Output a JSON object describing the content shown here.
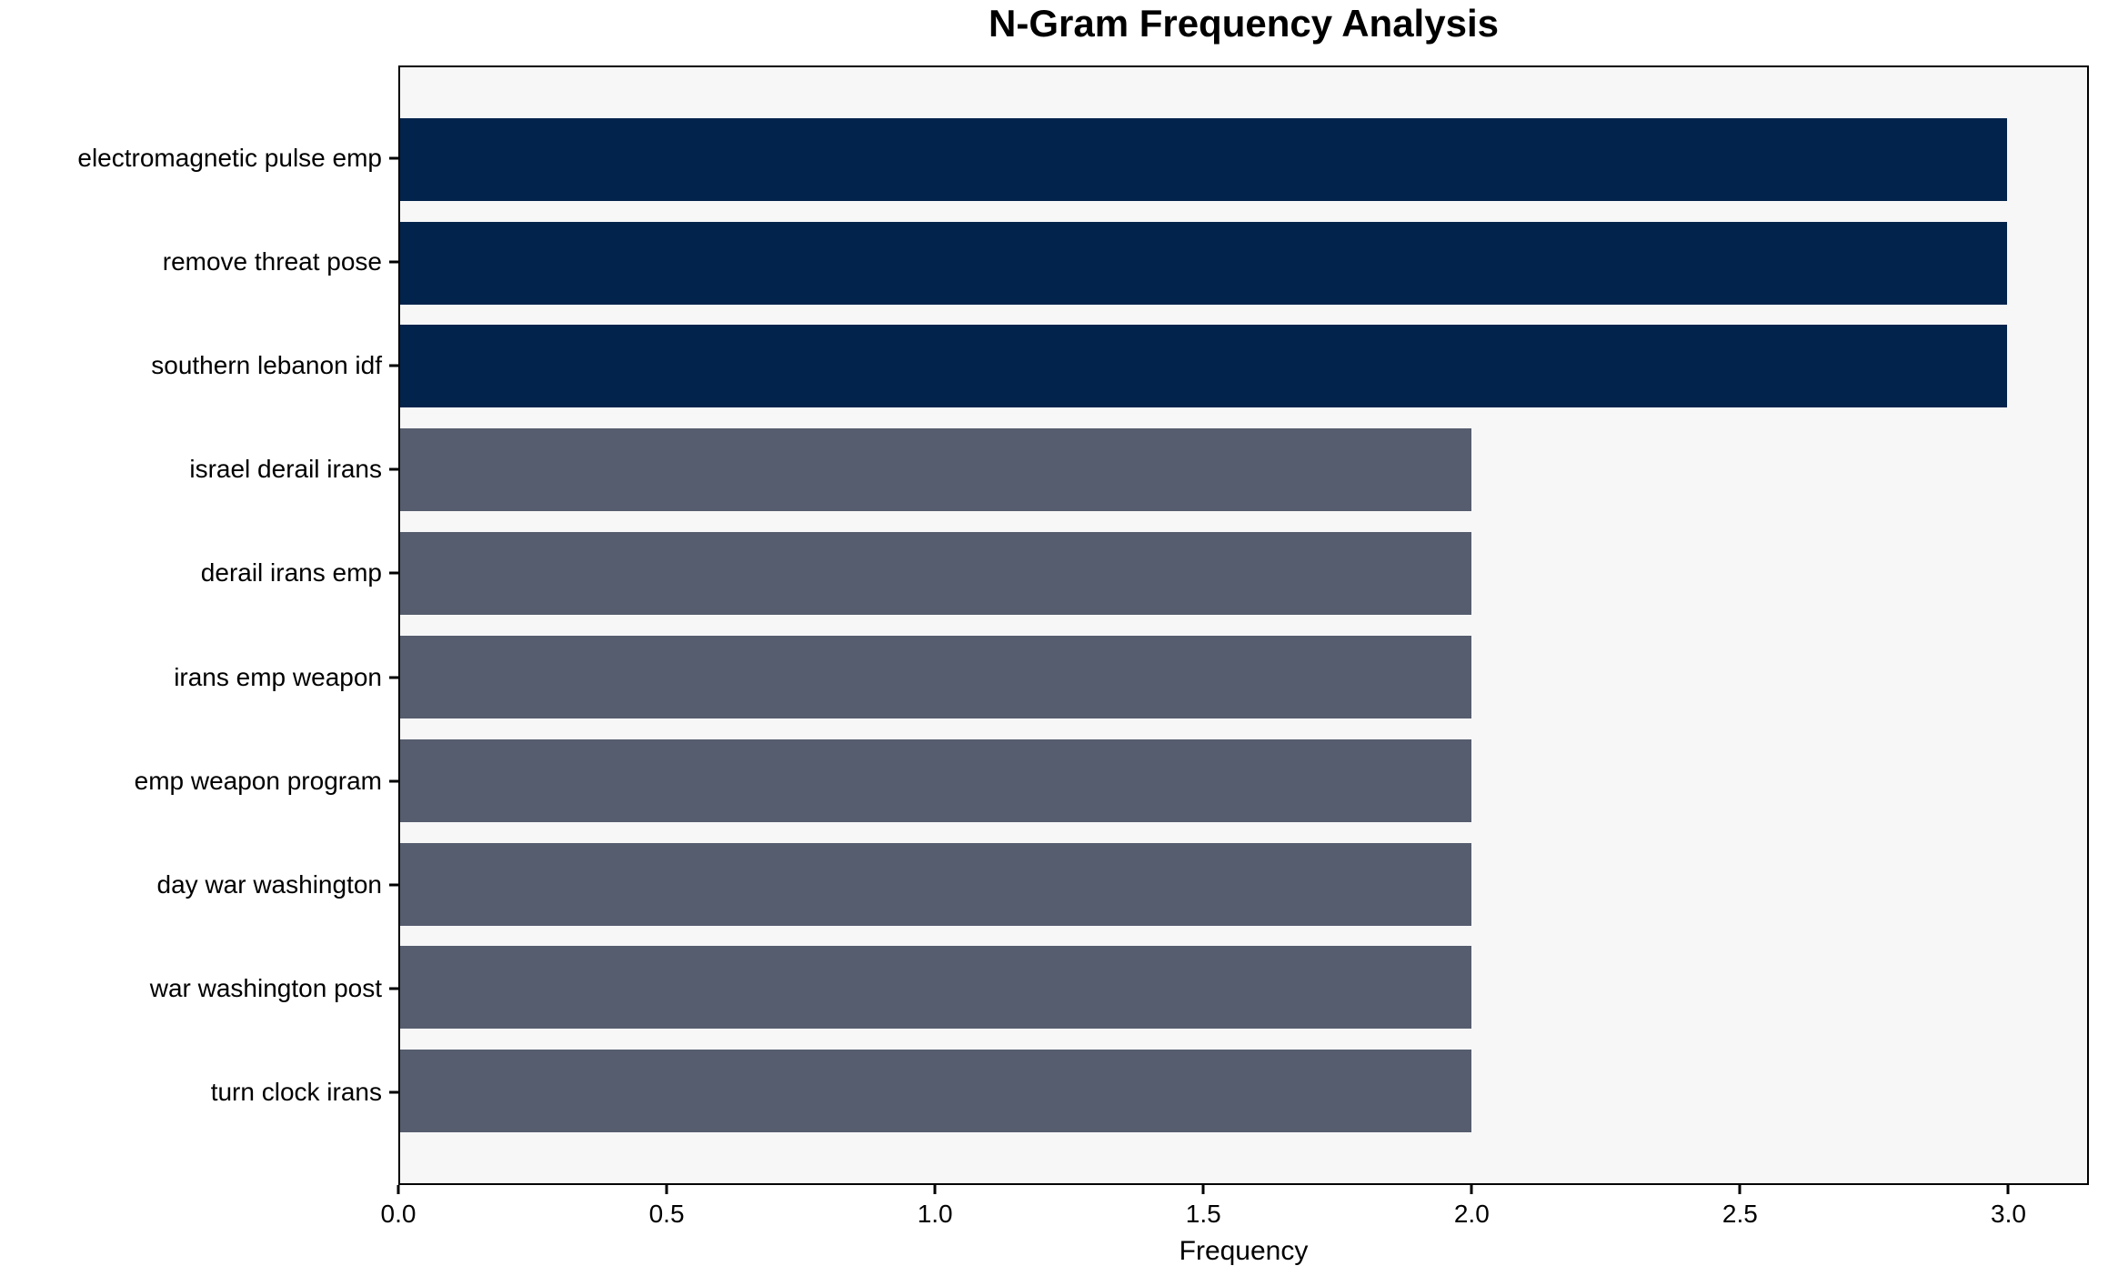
{
  "title": "N-Gram Frequency Analysis",
  "chart_data": {
    "type": "bar",
    "orientation": "horizontal",
    "title": "N-Gram Frequency Analysis",
    "xlabel": "Frequency",
    "ylabel": "",
    "categories": [
      "electromagnetic pulse emp",
      "remove threat pose",
      "southern lebanon idf",
      "israel derail irans",
      "derail irans emp",
      "irans emp weapon",
      "emp weapon program",
      "day war washington",
      "war washington post",
      "turn clock irans"
    ],
    "values": [
      3,
      3,
      3,
      2,
      2,
      2,
      2,
      2,
      2,
      2
    ],
    "bar_colors": [
      "#02234c",
      "#02234c",
      "#02234c",
      "#565d6e",
      "#565d6e",
      "#565d6e",
      "#565d6e",
      "#565d6e",
      "#565d6e",
      "#565d6e"
    ],
    "palette": {
      "highlight": "#02234c",
      "default": "#565d6e"
    },
    "xlim": [
      0,
      3.15
    ],
    "xticks": [
      0.0,
      0.5,
      1.0,
      1.5,
      2.0,
      2.5,
      3.0
    ],
    "xtick_labels": [
      "0.0",
      "0.5",
      "1.0",
      "1.5",
      "2.0",
      "2.5",
      "3.0"
    ],
    "bar_width": 0.8,
    "grid": false,
    "legend": null,
    "plot_bg": "#f7f7f8",
    "spine_color": "#000000"
  }
}
